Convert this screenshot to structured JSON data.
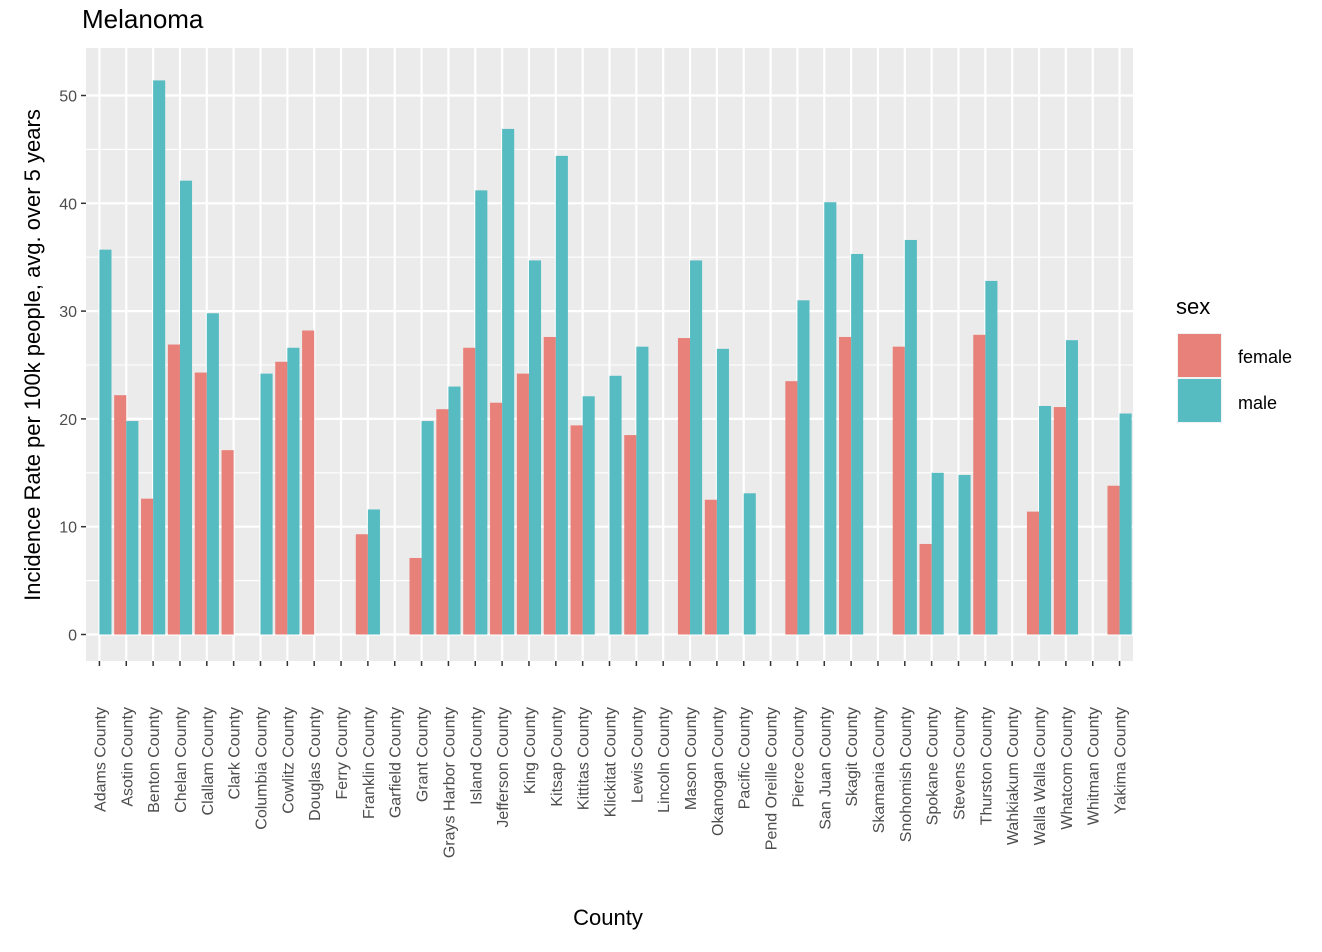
{
  "chart_data": {
    "type": "bar",
    "title": "Melanoma",
    "xlabel": "County",
    "ylabel": "Incidence Rate per 100k people, avg. over 5 years",
    "ylim": [
      -2.6,
      54.6
    ],
    "yticks": [
      0,
      10,
      20,
      30,
      40,
      50
    ],
    "grid": true,
    "legend": {
      "title": "sex",
      "position": "right"
    },
    "colors": {
      "female": "#e8817a",
      "male": "#56bcc2",
      "panel": "#ebebeb",
      "grid": "#ffffff"
    },
    "categories": [
      "Adams County",
      "Asotin County",
      "Benton County",
      "Chelan County",
      "Clallam County",
      "Clark County",
      "Columbia County",
      "Cowlitz County",
      "Douglas County",
      "Ferry County",
      "Franklin County",
      "Garfield County",
      "Grant County",
      "Grays Harbor County",
      "Island County",
      "Jefferson County",
      "King County",
      "Kitsap County",
      "Kittitas County",
      "Klickitat County",
      "Lewis County",
      "Lincoln County",
      "Mason County",
      "Okanogan County",
      "Pacific County",
      "Pend Oreille County",
      "Pierce County",
      "San Juan County",
      "Skagit County",
      "Skamania County",
      "Snohomish County",
      "Spokane County",
      "Stevens County",
      "Thurston County",
      "Wahkiakum County",
      "Walla Walla County",
      "Whatcom County",
      "Whitman County",
      "Yakima County"
    ],
    "series": [
      {
        "name": "female",
        "values": [
          null,
          22.2,
          12.6,
          26.9,
          24.3,
          17.1,
          null,
          25.3,
          28.2,
          null,
          9.3,
          null,
          7.1,
          20.9,
          26.6,
          21.5,
          24.2,
          27.6,
          19.4,
          null,
          18.5,
          null,
          27.5,
          12.5,
          null,
          null,
          23.5,
          null,
          27.6,
          null,
          26.7,
          8.4,
          null,
          27.8,
          null,
          11.4,
          21.1,
          null,
          13.8
        ]
      },
      {
        "name": "male",
        "values": [
          35.7,
          19.8,
          51.4,
          42.1,
          29.8,
          null,
          24.2,
          26.6,
          null,
          null,
          11.6,
          null,
          19.8,
          23.0,
          41.2,
          46.9,
          34.7,
          44.4,
          22.1,
          24.0,
          26.7,
          null,
          34.7,
          26.5,
          13.1,
          null,
          31.0,
          40.1,
          35.3,
          null,
          36.6,
          15.0,
          14.8,
          32.8,
          null,
          21.2,
          27.3,
          null,
          20.5
        ]
      }
    ]
  }
}
